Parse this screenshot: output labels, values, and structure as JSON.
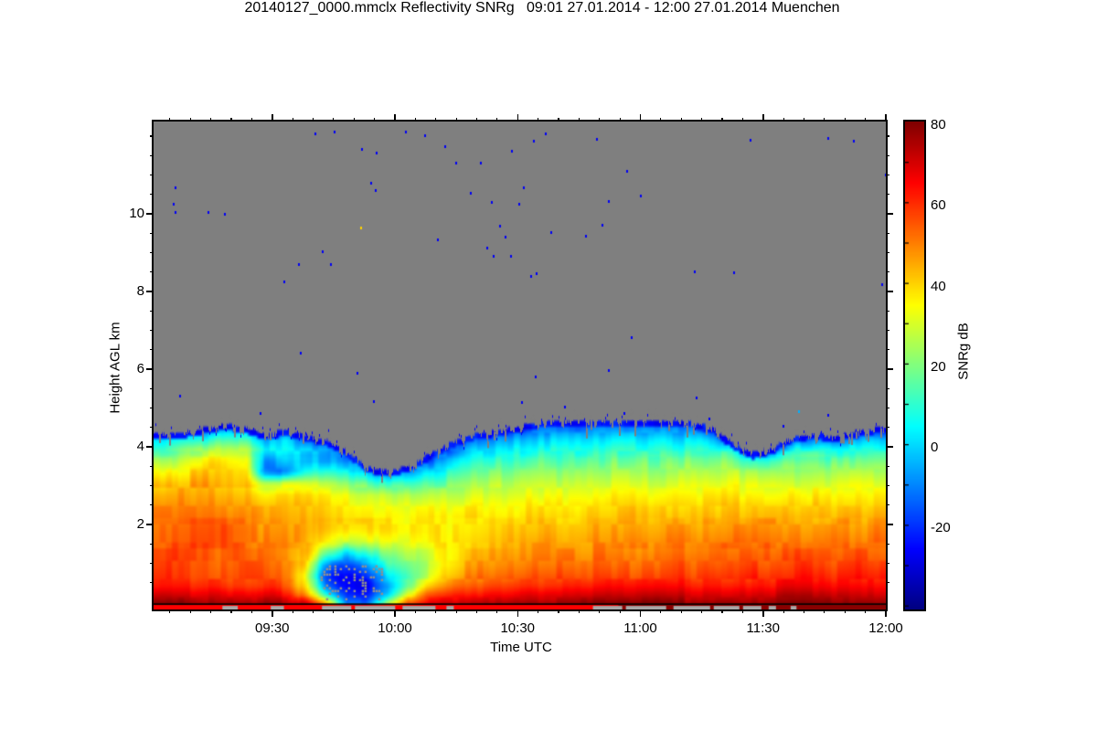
{
  "title": "20140127_0000.mmclx Reflectivity SNRg   09:01 27.01.2014 - 12:00 27.01.2014 Muenchen",
  "axes": {
    "x": {
      "label": "Time UTC",
      "start_time": "09:01",
      "end_time": "12:00",
      "duration_min": 179,
      "major_ticks": [
        {
          "min": 29,
          "label": "09:30"
        },
        {
          "min": 59,
          "label": "10:00"
        },
        {
          "min": 89,
          "label": "10:30"
        },
        {
          "min": 119,
          "label": "11:00"
        },
        {
          "min": 149,
          "label": "11:30"
        },
        {
          "min": 179,
          "label": "12:00"
        }
      ],
      "minor_step_min": 5
    },
    "y": {
      "label": "Height AGL km",
      "major_ticks": [
        2,
        4,
        6,
        8,
        10
      ],
      "minor_step_km": 0.5,
      "km_at_top": 12.38,
      "km_at_bottom": -0.19
    },
    "colorbar": {
      "label": "SNRg dB",
      "ticks": [
        80,
        60,
        40,
        20,
        0,
        -20
      ],
      "vmin": -41,
      "vmax": 80,
      "minor_step_db": 10
    }
  },
  "colors": {
    "no_signal_gray": "#7f7f7f",
    "clutter_gray": "#a8a8a8",
    "blob_speckle_gray": "#8f8f8f",
    "axis_black": "#000000",
    "background": "#ffffff"
  },
  "chart_data": {
    "type": "heatmap",
    "title": "20140127_0000.mmclx Reflectivity SNRg",
    "site": "Muenchen",
    "time_span": {
      "start": "09:01 27.01.2014",
      "end": "12:00 27.01.2014",
      "n_cols": 36
    },
    "value_units": "SNRg dB",
    "row_edges_km": [
      -0.2,
      0.1,
      0.3,
      0.55,
      0.8,
      1.1,
      1.4,
      1.7,
      2.0,
      2.3,
      2.6,
      2.9,
      3.2,
      3.5,
      3.8,
      4.05,
      4.3,
      4.55,
      4.8
    ],
    "cloud_top_km": [
      4.35,
      4.4,
      4.5,
      4.6,
      4.5,
      4.35,
      4.45,
      4.3,
      4.2,
      3.9,
      3.5,
      3.4,
      3.5,
      3.8,
      4.1,
      4.3,
      4.4,
      4.5,
      4.6,
      4.7,
      4.72,
      4.7,
      4.68,
      4.7,
      4.72,
      4.7,
      4.65,
      4.5,
      4.1,
      3.85,
      4.0,
      4.3,
      4.35,
      4.3,
      4.4,
      4.5
    ],
    "grid_dB": [
      [
        78,
        68,
        60,
        58,
        56,
        55,
        55,
        54,
        52,
        50,
        46,
        40,
        32,
        22,
        12,
        2,
        -18,
        null
      ],
      [
        78,
        68,
        61,
        58,
        57,
        56,
        55,
        54,
        52,
        50,
        47,
        44,
        38,
        30,
        20,
        6,
        -15,
        null
      ],
      [
        78,
        69,
        62,
        59,
        58,
        57,
        56,
        55,
        53,
        51,
        48,
        45,
        40,
        34,
        26,
        10,
        -10,
        -24
      ],
      [
        78,
        68,
        60,
        57,
        55,
        54,
        55,
        55,
        53,
        50,
        46,
        42,
        40,
        36,
        28,
        15,
        0,
        -20
      ],
      [
        78,
        67,
        59,
        56,
        55,
        54,
        54,
        54,
        52,
        49,
        45,
        41,
        38,
        34,
        26,
        12,
        -5,
        -22
      ],
      [
        77,
        66,
        58,
        55,
        53,
        51,
        50,
        48,
        46,
        44,
        38,
        25,
        -12,
        -8,
        5,
        -5,
        -22,
        null
      ],
      [
        76,
        65,
        57,
        54,
        52,
        50,
        50,
        48,
        46,
        44,
        40,
        28,
        -15,
        -5,
        3,
        0,
        -18,
        null
      ],
      [
        70,
        45,
        35,
        30,
        38,
        42,
        44,
        45,
        44,
        42,
        38,
        28,
        5,
        -5,
        0,
        -15,
        null,
        null
      ],
      [
        45,
        5,
        -15,
        -20,
        -10,
        15,
        32,
        38,
        40,
        38,
        34,
        25,
        8,
        -8,
        -5,
        -18,
        null,
        null
      ],
      [
        -10,
        -22,
        -27,
        -26,
        -18,
        0,
        25,
        35,
        38,
        36,
        32,
        20,
        5,
        -10,
        -20,
        null,
        null,
        null
      ],
      [
        -12,
        -24,
        -28,
        -25,
        -12,
        8,
        28,
        36,
        38,
        35,
        30,
        15,
        -5,
        -20,
        null,
        null,
        null,
        null
      ],
      [
        25,
        -5,
        -10,
        0,
        10,
        20,
        30,
        36,
        37,
        34,
        28,
        12,
        -12,
        -22,
        null,
        null,
        null,
        null
      ],
      [
        55,
        30,
        15,
        15,
        20,
        25,
        32,
        36,
        36,
        33,
        26,
        12,
        -8,
        -20,
        null,
        null,
        null,
        null
      ],
      [
        68,
        55,
        40,
        30,
        28,
        30,
        34,
        36,
        35,
        32,
        25,
        15,
        2,
        -15,
        null,
        null,
        null,
        null
      ],
      [
        72,
        60,
        50,
        42,
        38,
        38,
        38,
        37,
        36,
        32,
        26,
        18,
        8,
        -2,
        -18,
        null,
        null,
        null
      ],
      [
        74,
        62,
        54,
        48,
        44,
        42,
        40,
        38,
        37,
        34,
        28,
        22,
        14,
        5,
        -5,
        -18,
        null,
        null
      ],
      [
        75,
        64,
        56,
        50,
        46,
        44,
        42,
        40,
        38,
        35,
        30,
        24,
        17,
        8,
        0,
        -10,
        -22,
        null
      ],
      [
        76,
        65,
        58,
        52,
        48,
        45,
        43,
        41,
        39,
        36,
        31,
        26,
        19,
        11,
        3,
        -6,
        -20,
        null
      ],
      [
        78,
        67,
        59,
        54,
        50,
        47,
        45,
        42,
        40,
        37,
        32,
        27,
        21,
        14,
        6,
        -2,
        -14,
        -24
      ],
      [
        78,
        68,
        60,
        55,
        51,
        48,
        46,
        43,
        41,
        38,
        33,
        28,
        22,
        15,
        8,
        0,
        -10,
        -22
      ],
      [
        78,
        68,
        61,
        56,
        52,
        49,
        46,
        44,
        41,
        38,
        34,
        29,
        23,
        16,
        9,
        2,
        -8,
        -20
      ],
      [
        79,
        69,
        61,
        56,
        53,
        50,
        47,
        44,
        42,
        39,
        34,
        29,
        23,
        16,
        9,
        2,
        -8,
        -20
      ],
      [
        79,
        69,
        62,
        57,
        53,
        50,
        47,
        45,
        42,
        39,
        35,
        30,
        24,
        17,
        10,
        2,
        -8,
        -20
      ],
      [
        79,
        69,
        62,
        57,
        54,
        51,
        48,
        45,
        42,
        39,
        35,
        30,
        24,
        17,
        10,
        3,
        -7,
        -20
      ],
      [
        79,
        70,
        62,
        58,
        54,
        51,
        48,
        45,
        43,
        40,
        35,
        30,
        24,
        18,
        10,
        3,
        -7,
        -20
      ],
      [
        79,
        70,
        63,
        58,
        55,
        52,
        49,
        46,
        43,
        40,
        36,
        31,
        25,
        18,
        11,
        3,
        -7,
        -20
      ],
      [
        79,
        70,
        63,
        58,
        55,
        52,
        49,
        46,
        43,
        40,
        36,
        31,
        25,
        18,
        11,
        3,
        -8,
        -21
      ],
      [
        79,
        70,
        63,
        59,
        55,
        52,
        49,
        46,
        43,
        40,
        36,
        31,
        25,
        18,
        10,
        0,
        -18,
        null
      ],
      [
        79,
        71,
        64,
        59,
        56,
        53,
        50,
        47,
        44,
        41,
        36,
        31,
        25,
        17,
        5,
        -20,
        null,
        null
      ],
      [
        79,
        71,
        64,
        60,
        56,
        53,
        50,
        47,
        44,
        41,
        36,
        30,
        22,
        8,
        -22,
        null,
        null,
        null
      ],
      [
        79,
        71,
        64,
        60,
        56,
        53,
        50,
        47,
        44,
        41,
        36,
        30,
        22,
        10,
        -15,
        null,
        null,
        null
      ],
      [
        80,
        72,
        65,
        60,
        57,
        54,
        51,
        48,
        45,
        41,
        37,
        31,
        25,
        16,
        5,
        -15,
        null,
        null
      ],
      [
        80,
        72,
        65,
        61,
        57,
        54,
        51,
        48,
        45,
        42,
        37,
        32,
        26,
        17,
        7,
        -10,
        -24,
        null
      ],
      [
        80,
        72,
        65,
        61,
        57,
        54,
        51,
        48,
        45,
        42,
        38,
        32,
        26,
        17,
        7,
        -12,
        null,
        null
      ],
      [
        80,
        72,
        66,
        61,
        58,
        55,
        52,
        49,
        46,
        42,
        38,
        33,
        26,
        18,
        8,
        -5,
        -22,
        null
      ],
      [
        80,
        72,
        66,
        62,
        58,
        55,
        52,
        49,
        46,
        42,
        38,
        33,
        27,
        18,
        9,
        0,
        -20,
        null
      ]
    ],
    "speckles_frac_km_dB": [
      [
        0.22,
        12.1,
        -27
      ],
      [
        0.246,
        12.15,
        -27
      ],
      [
        0.283,
        11.7,
        -27
      ],
      [
        0.303,
        11.6,
        -27
      ],
      [
        0.397,
        11.76,
        -27
      ],
      [
        0.488,
        11.65,
        -27
      ],
      [
        0.534,
        12.1,
        -27
      ],
      [
        0.518,
        11.9,
        -27
      ],
      [
        0.604,
        11.95,
        -27
      ],
      [
        0.412,
        11.34,
        -27
      ],
      [
        0.446,
        11.34,
        -27
      ],
      [
        0.645,
        11.13,
        -27
      ],
      [
        0.296,
        10.82,
        -27
      ],
      [
        0.302,
        10.64,
        -27
      ],
      [
        0.029,
        10.71,
        -27
      ],
      [
        0.026,
        10.28,
        -27
      ],
      [
        0.029,
        10.07,
        -27
      ],
      [
        0.074,
        10.07,
        -27
      ],
      [
        0.432,
        10.56,
        -27
      ],
      [
        0.504,
        10.71,
        -27
      ],
      [
        0.461,
        10.33,
        -27
      ],
      [
        0.498,
        10.28,
        -27
      ],
      [
        0.62,
        10.35,
        -27
      ],
      [
        0.282,
        9.67,
        40
      ],
      [
        0.387,
        9.36,
        -27
      ],
      [
        0.23,
        9.06,
        -27
      ],
      [
        0.479,
        9.44,
        -27
      ],
      [
        0.454,
        9.15,
        -27
      ],
      [
        0.463,
        8.94,
        -27
      ],
      [
        0.487,
        8.94,
        -27
      ],
      [
        0.197,
        8.73,
        -27
      ],
      [
        0.241,
        8.73,
        -27
      ],
      [
        0.177,
        8.28,
        -27
      ],
      [
        0.514,
        8.42,
        -27
      ],
      [
        0.522,
        8.49,
        -27
      ],
      [
        0.542,
        9.55,
        -27
      ],
      [
        0.612,
        9.74,
        -27
      ],
      [
        0.955,
        11.9,
        -27
      ],
      [
        0.994,
        8.21,
        -27
      ],
      [
        0.999,
        11.04,
        -27
      ],
      [
        0.652,
        6.85,
        -27
      ],
      [
        0.791,
        8.52,
        -27
      ],
      [
        0.2,
        6.45,
        -27
      ],
      [
        0.277,
        5.93,
        -27
      ],
      [
        0.521,
        5.84,
        -27
      ],
      [
        0.62,
        6.0,
        -27
      ],
      [
        0.502,
        5.18,
        -27
      ],
      [
        0.642,
        4.89,
        -27
      ],
      [
        0.758,
        4.75,
        -27
      ],
      [
        0.859,
        4.56,
        -27
      ],
      [
        0.92,
        4.85,
        -27
      ],
      [
        0.814,
        11.93,
        -27
      ],
      [
        0.92,
        11.98,
        -27
      ],
      [
        0.096,
        10.02,
        -27
      ],
      [
        0.343,
        12.14,
        -27
      ],
      [
        0.37,
        12.05,
        -27
      ],
      [
        0.472,
        9.72,
        -27
      ],
      [
        0.589,
        9.46,
        -27
      ],
      [
        0.664,
        10.49,
        -27
      ],
      [
        0.738,
        8.54,
        -27
      ],
      [
        0.3,
        5.2,
        -27
      ],
      [
        0.56,
        5.05,
        -27
      ],
      [
        0.74,
        5.3,
        -27
      ],
      [
        0.88,
        4.95,
        -5
      ],
      [
        0.145,
        4.9,
        -27
      ],
      [
        0.035,
        5.35,
        -27
      ]
    ],
    "clutter_patches_frac": [
      [
        0.094,
        0.115
      ],
      [
        0.16,
        0.178
      ],
      [
        0.23,
        0.27
      ],
      [
        0.275,
        0.33
      ],
      [
        0.34,
        0.385
      ],
      [
        0.4,
        0.41
      ],
      [
        0.6,
        0.64
      ],
      [
        0.645,
        0.7
      ],
      [
        0.71,
        0.76
      ],
      [
        0.765,
        0.8
      ],
      [
        0.805,
        0.83
      ],
      [
        0.84,
        0.85
      ],
      [
        0.87,
        0.878
      ]
    ],
    "blob_speckle_region": {
      "t0": 0.228,
      "t1": 0.312,
      "h0": 0.05,
      "h1": 0.95,
      "density": 0.22
    },
    "surface_line_km": -0.05,
    "sub_line_bright_red_until_frac": 0.635
  }
}
